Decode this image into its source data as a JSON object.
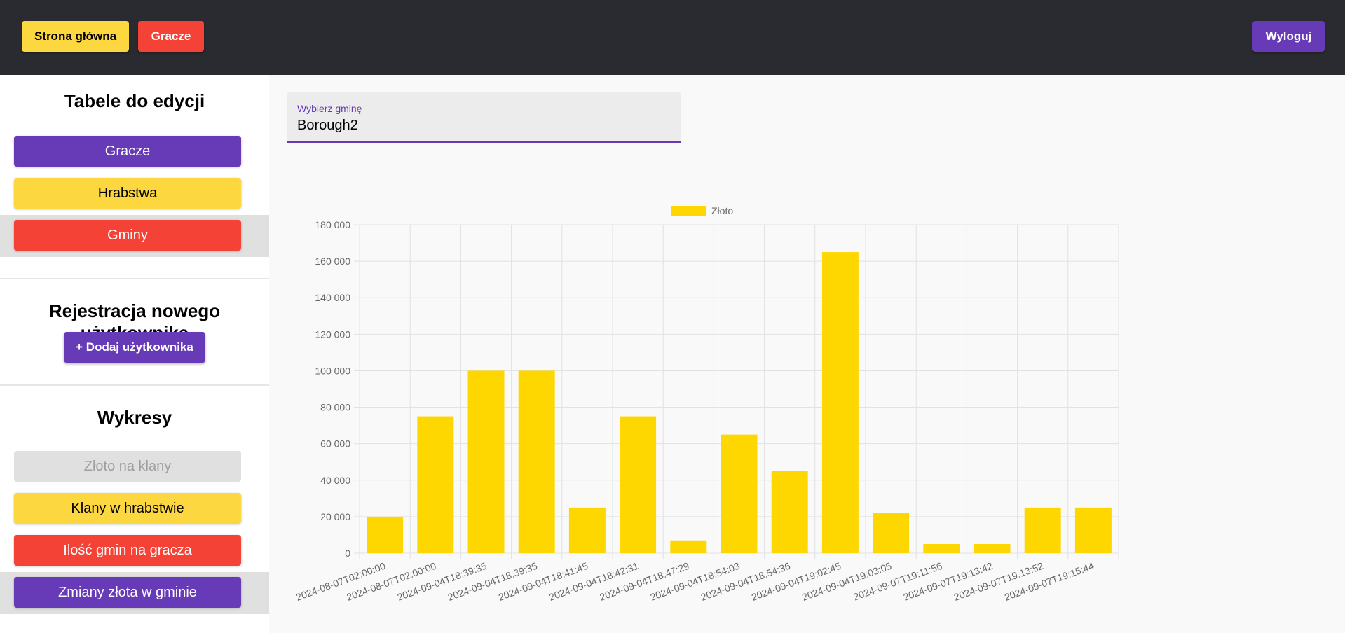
{
  "topbar": {
    "home_label": "Strona główna",
    "players_label": "Gracze",
    "logout_label": "Wyloguj"
  },
  "sidebar": {
    "tables_heading": "Tabele do edycji",
    "tables": [
      "Gracze",
      "Hrabstwa",
      "Gminy"
    ],
    "register_heading": "Rejestracja nowego użytkownika",
    "add_user_label": "+ Dodaj użytkownika",
    "charts_heading": "Wykresy",
    "charts": [
      "Złoto na klany",
      "Klany w hrabstwie",
      "Ilość gmin na gracza",
      "Zmiany złota w gminie"
    ]
  },
  "select": {
    "label": "Wybierz gminę",
    "value": "Borough2"
  },
  "colors": {
    "yellow": "#fdd73f",
    "red": "#f44336",
    "purple": "#673ab7",
    "bar": "#ffd700"
  },
  "chart_data": {
    "type": "bar",
    "categories": [
      "2024-08-07T02:00:00",
      "2024-08-07T02:00:00",
      "2024-09-04T18:39:35",
      "2024-09-04T18:39:35",
      "2024-09-04T18:41:45",
      "2024-09-04T18:42:31",
      "2024-09-04T18:47:29",
      "2024-09-04T18:54:03",
      "2024-09-04T18:54:36",
      "2024-09-04T19:02:45",
      "2024-09-04T19:03:05",
      "2024-09-07T19:11:56",
      "2024-09-07T19:13:42",
      "2024-09-07T19:13:52",
      "2024-09-07T19:15:44"
    ],
    "series": [
      {
        "name": "Złoto",
        "values": [
          20000,
          75000,
          100000,
          100000,
          25000,
          75000,
          7000,
          65000,
          45000,
          165000,
          22000,
          5000,
          5000,
          25000,
          25000
        ]
      }
    ],
    "ylim": [
      0,
      180000
    ],
    "yticks": [
      "0",
      "20 000",
      "40 000",
      "60 000",
      "80 000",
      "100 000",
      "120 000",
      "140 000",
      "160 000",
      "180 000"
    ],
    "grid": true,
    "legend": "top"
  }
}
